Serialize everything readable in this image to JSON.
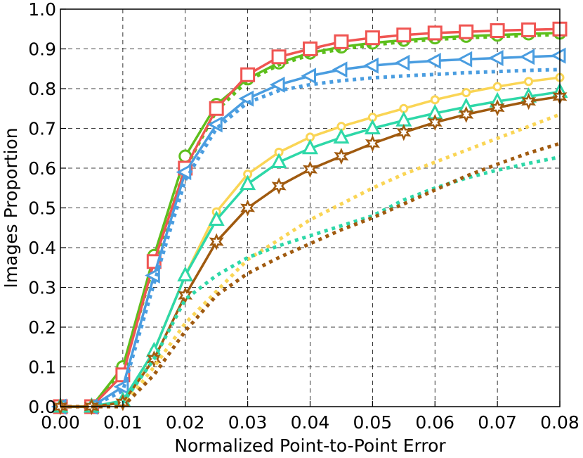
{
  "chart_data": {
    "type": "line",
    "title": "",
    "xlabel": "Normalized Point-to-Point Error",
    "ylabel": "Images Proportion",
    "xlim": [
      0,
      0.08
    ],
    "ylim": [
      0,
      1.0
    ],
    "grid": true,
    "grid_style": "dashed",
    "x_ticks": [
      "0.00",
      "0.01",
      "0.02",
      "0.03",
      "0.04",
      "0.05",
      "0.06",
      "0.07",
      "0.08"
    ],
    "y_ticks": [
      "0.0",
      "0.1",
      "0.2",
      "0.3",
      "0.4",
      "0.5",
      "0.6",
      "0.7",
      "0.8",
      "0.9",
      "1.0"
    ],
    "x": [
      0,
      0.005,
      0.01,
      0.015,
      0.02,
      0.025,
      0.03,
      0.035,
      0.04,
      0.045,
      0.05,
      0.055,
      0.06,
      0.065,
      0.07,
      0.075,
      0.08
    ],
    "series": [
      {
        "color": "#5dbf1c",
        "dash": "solid",
        "marker": "circle",
        "values": [
          0.0,
          0.0,
          0.1,
          0.38,
          0.63,
          0.76,
          0.825,
          0.865,
          0.89,
          0.905,
          0.915,
          0.922,
          0.928,
          0.932,
          0.935,
          0.938,
          0.94
        ]
      },
      {
        "color": "#5dbf1c",
        "dash": "dashed",
        "marker": "none",
        "values": [
          0.0,
          0.0,
          0.09,
          0.36,
          0.6,
          0.745,
          0.82,
          0.86,
          0.885,
          0.9,
          0.91,
          0.918,
          0.924,
          0.928,
          0.931,
          0.934,
          0.936
        ]
      },
      {
        "color": "#f05552",
        "dash": "solid",
        "marker": "square",
        "values": [
          0.0,
          0.0,
          0.08,
          0.365,
          0.6,
          0.75,
          0.835,
          0.88,
          0.9,
          0.918,
          0.928,
          0.935,
          0.94,
          0.943,
          0.946,
          0.948,
          0.95
        ]
      },
      {
        "color": "#4a9de0",
        "dash": "solid",
        "marker": "triangle-left",
        "values": [
          0.0,
          0.0,
          0.05,
          0.33,
          0.59,
          0.71,
          0.775,
          0.81,
          0.832,
          0.848,
          0.858,
          0.865,
          0.87,
          0.874,
          0.877,
          0.88,
          0.883
        ]
      },
      {
        "color": "#4a9de0",
        "dash": "dashed",
        "marker": "none",
        "values": [
          0.0,
          0.0,
          0.04,
          0.31,
          0.57,
          0.7,
          0.765,
          0.795,
          0.81,
          0.82,
          0.827,
          0.832,
          0.836,
          0.84,
          0.843,
          0.846,
          0.848
        ]
      },
      {
        "color": "#fad555",
        "dash": "solid",
        "marker": "small-circle",
        "values": [
          0.0,
          0.0,
          0.01,
          0.14,
          0.33,
          0.49,
          0.585,
          0.64,
          0.678,
          0.705,
          0.728,
          0.75,
          0.772,
          0.79,
          0.805,
          0.818,
          0.828
        ]
      },
      {
        "color": "#2ed8a8",
        "dash": "solid",
        "marker": "triangle-up",
        "values": [
          0.0,
          0.0,
          0.015,
          0.14,
          0.33,
          0.47,
          0.56,
          0.615,
          0.65,
          0.677,
          0.7,
          0.72,
          0.738,
          0.754,
          0.768,
          0.78,
          0.792
        ]
      },
      {
        "color": "#a05a0f",
        "dash": "solid",
        "marker": "star",
        "values": [
          0.0,
          0.0,
          0.01,
          0.12,
          0.28,
          0.415,
          0.5,
          0.555,
          0.597,
          0.63,
          0.662,
          0.69,
          0.715,
          0.735,
          0.752,
          0.768,
          0.78
        ]
      },
      {
        "color": "#fad555",
        "dash": "dashed",
        "marker": "none",
        "values": [
          0.0,
          0.0,
          0.0,
          0.1,
          0.21,
          0.29,
          0.37,
          0.42,
          0.47,
          0.51,
          0.55,
          0.585,
          0.615,
          0.645,
          0.675,
          0.705,
          0.735
        ]
      },
      {
        "color": "#2ed8a8",
        "dash": "dashed",
        "marker": "none",
        "values": [
          0.0,
          0.0,
          0.01,
          0.12,
          0.27,
          0.33,
          0.375,
          0.405,
          0.43,
          0.455,
          0.48,
          0.52,
          0.55,
          0.575,
          0.595,
          0.612,
          0.628
        ]
      },
      {
        "color": "#a05a0f",
        "dash": "dashed",
        "marker": "none",
        "values": [
          0.0,
          0.0,
          0.0,
          0.08,
          0.19,
          0.28,
          0.335,
          0.375,
          0.41,
          0.445,
          0.475,
          0.51,
          0.545,
          0.58,
          0.61,
          0.638,
          0.662
        ]
      }
    ]
  }
}
